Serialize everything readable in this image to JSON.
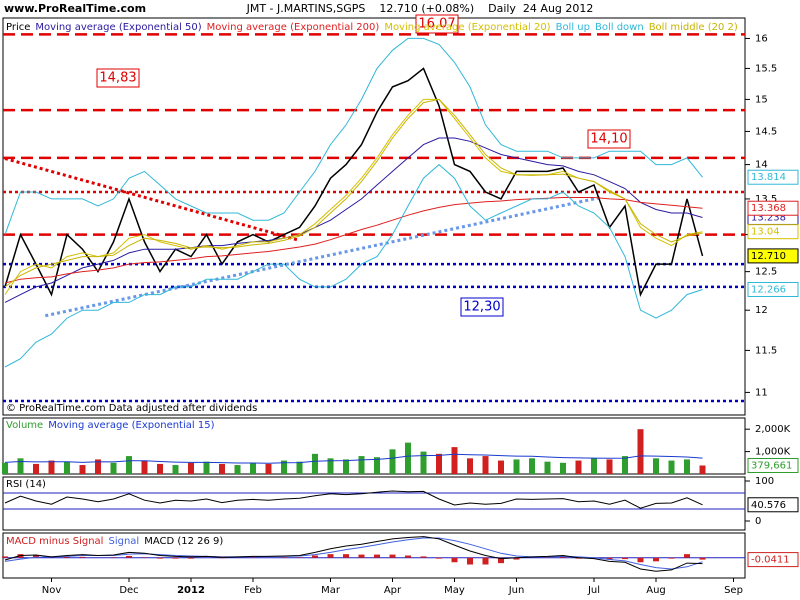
{
  "header": {
    "logo": "www.ProRealTime.com",
    "title": "JMT - J.MARTINS,SGPS    12.710 (+0.08%)    Daily  24 Aug 2012",
    "note": "© ProRealTime.com Data adjusted after dividends"
  },
  "chart_data": [
    {
      "type": "line",
      "log_scale": true,
      "ylim": [
        10.74,
        16.35
      ],
      "yticks": [
        11,
        11.5,
        12,
        12.5,
        13,
        13.5,
        14,
        14.5,
        15,
        15.5,
        16
      ],
      "categories": [
        null,
        null,
        null,
        "Nov",
        null,
        null,
        null,
        null,
        "Dec",
        null,
        null,
        null,
        "2012",
        null,
        null,
        null,
        "Feb",
        null,
        null,
        null,
        null,
        "Mar",
        null,
        null,
        null,
        "Apr",
        null,
        null,
        null,
        "May",
        null,
        null,
        null,
        "Jun",
        null,
        null,
        null,
        null,
        "Jul",
        null,
        null,
        null,
        "Aug",
        null,
        null,
        null,
        null,
        "Sep"
      ],
      "series": [
        {
          "name": "Price",
          "color": "#000000",
          "label_fill": "#ffff00",
          "values": [
            12.3,
            13.0,
            12.6,
            12.2,
            13.0,
            12.8,
            12.5,
            12.9,
            13.5,
            12.9,
            12.5,
            12.8,
            12.7,
            13.0,
            12.6,
            12.9,
            13.0,
            12.9,
            13.0,
            13.1,
            13.4,
            13.8,
            14.0,
            14.3,
            14.8,
            15.2,
            15.3,
            15.5,
            14.9,
            14.0,
            13.9,
            13.6,
            13.5,
            13.9,
            13.9,
            13.9,
            13.95,
            13.6,
            13.7,
            13.1,
            13.4,
            12.2,
            12.6,
            12.6,
            13.5,
            12.71,
            null,
            null
          ],
          "value_labels": [
            null,
            null,
            null,
            null,
            null,
            null,
            null,
            null,
            null,
            null,
            null,
            null,
            null,
            null,
            null,
            null,
            null,
            null,
            null,
            null,
            null,
            null,
            null,
            null,
            null,
            null,
            null,
            null,
            null,
            null,
            null,
            null,
            null,
            null,
            null,
            null,
            null,
            null,
            null,
            null,
            null,
            null,
            null,
            null,
            null,
            "12.710",
            null,
            null
          ]
        },
        {
          "name": "Moving average (Exponential 50)",
          "color": "#2a1aa0",
          "value_box": true,
          "values": [
            12.1,
            12.2,
            12.3,
            12.35,
            12.45,
            12.55,
            12.6,
            12.65,
            12.75,
            12.8,
            12.8,
            12.8,
            12.82,
            12.85,
            12.85,
            12.88,
            12.9,
            12.92,
            12.95,
            13.0,
            13.1,
            13.2,
            13.35,
            13.5,
            13.7,
            13.9,
            14.1,
            14.3,
            14.4,
            14.4,
            14.35,
            14.25,
            14.15,
            14.1,
            14.05,
            14.0,
            13.98,
            13.9,
            13.85,
            13.75,
            13.65,
            13.45,
            13.35,
            13.3,
            13.3,
            13.238,
            null,
            null
          ]
        },
        {
          "name": "Moving average (Exponential 200)",
          "color": "#e02020",
          "value_box": true,
          "values": [
            12.35,
            12.4,
            12.42,
            12.43,
            12.47,
            12.5,
            12.52,
            12.55,
            12.6,
            12.62,
            12.63,
            12.65,
            12.67,
            12.7,
            12.71,
            12.73,
            12.75,
            12.77,
            12.8,
            12.83,
            12.87,
            12.93,
            13.0,
            13.07,
            13.13,
            13.2,
            13.27,
            13.33,
            13.38,
            13.42,
            13.44,
            13.46,
            13.47,
            13.49,
            13.5,
            13.51,
            13.52,
            13.52,
            13.52,
            13.5,
            13.49,
            13.45,
            13.43,
            13.41,
            13.39,
            13.368,
            null,
            null
          ]
        },
        {
          "name": "Moving average (Exponential 20)",
          "color": "#d4c000",
          "value_box": true,
          "values": [
            12.2,
            12.5,
            12.6,
            12.55,
            12.7,
            12.75,
            12.7,
            12.75,
            12.95,
            13.0,
            12.9,
            12.85,
            12.8,
            12.85,
            12.8,
            12.85,
            12.9,
            12.9,
            12.95,
            13.0,
            13.15,
            13.35,
            13.55,
            13.8,
            14.1,
            14.45,
            14.75,
            15.0,
            15.0,
            14.7,
            14.4,
            14.1,
            13.9,
            13.85,
            13.85,
            13.85,
            13.9,
            13.8,
            13.75,
            13.6,
            13.5,
            13.1,
            12.95,
            12.85,
            13.0,
            13.04,
            null,
            null
          ]
        },
        {
          "name": "Boll up",
          "color": "#30b8d8",
          "value_box": true,
          "values": [
            13.0,
            13.6,
            13.6,
            13.5,
            13.5,
            13.5,
            13.4,
            13.5,
            13.8,
            13.9,
            13.7,
            13.5,
            13.4,
            13.3,
            13.3,
            13.3,
            13.2,
            13.2,
            13.3,
            13.6,
            13.9,
            14.3,
            14.6,
            15.0,
            15.5,
            15.8,
            16.0,
            16.0,
            15.9,
            15.6,
            15.2,
            14.6,
            14.3,
            14.2,
            14.2,
            14.2,
            14.1,
            14.1,
            14.1,
            14.2,
            14.2,
            14.2,
            14.0,
            14.0,
            14.1,
            13.814,
            null,
            null
          ]
        },
        {
          "name": "Boll down",
          "color": "#30b8d8",
          "value_box": true,
          "values": [
            11.3,
            11.4,
            11.6,
            11.7,
            11.9,
            12.0,
            12.0,
            12.1,
            12.1,
            12.2,
            12.2,
            12.3,
            12.3,
            12.4,
            12.4,
            12.4,
            12.5,
            12.6,
            12.6,
            12.4,
            12.3,
            12.3,
            12.4,
            12.6,
            12.7,
            13.0,
            13.4,
            13.8,
            14.0,
            13.8,
            13.4,
            13.2,
            13.3,
            13.4,
            13.5,
            13.5,
            13.6,
            13.4,
            13.3,
            13.1,
            12.7,
            12.0,
            11.9,
            12.0,
            12.2,
            12.266,
            null,
            null
          ]
        },
        {
          "name": "Boll middle (20 2)",
          "color": "#c8b400",
          "values": [
            12.3,
            12.45,
            12.55,
            12.6,
            12.65,
            12.7,
            12.7,
            12.72,
            12.85,
            12.95,
            12.92,
            12.88,
            12.82,
            12.83,
            12.82,
            12.83,
            12.86,
            12.88,
            12.92,
            12.98,
            13.1,
            13.3,
            13.5,
            13.75,
            14.05,
            14.4,
            14.7,
            14.95,
            15.0,
            14.75,
            14.45,
            14.15,
            13.95,
            13.85,
            13.84,
            13.85,
            13.86,
            13.8,
            13.75,
            13.62,
            13.5,
            13.15,
            13.0,
            12.9,
            12.98,
            13.02,
            null,
            null
          ]
        }
      ],
      "levels": [
        {
          "value": 16.07,
          "label": "16,07",
          "style": "dashed",
          "color": "#e00000"
        },
        {
          "value": 14.83,
          "label": "14,83",
          "style": "dashed",
          "color": "#e00000"
        },
        {
          "value": 14.1,
          "label": "14,10",
          "style": "dashed",
          "color": "#e00000"
        },
        {
          "value": 13.6,
          "style": "dotted",
          "color": "#e00000"
        },
        {
          "value": 13.0,
          "style": "dashed",
          "color": "#e00000"
        },
        {
          "value": 12.6,
          "style": "dotted",
          "color": "#0000cc"
        },
        {
          "value": 12.3,
          "label": "12,30",
          "style": "dotted",
          "color": "#0000cc"
        },
        {
          "value": 10.9,
          "style": "dotted",
          "color": "#0000cc"
        }
      ],
      "trendlines": [
        {
          "color": "#e00000",
          "x": [
            0,
            19
          ],
          "y": [
            14.09,
            12.92
          ]
        },
        {
          "color": "#6a98e8",
          "x": [
            2.6,
            38.4
          ],
          "y": [
            11.93,
            13.52
          ]
        }
      ]
    },
    {
      "type": "bar",
      "ylim": [
        0,
        2500000
      ],
      "yticks": [
        {
          "value": 2000000,
          "label": "2,000K"
        },
        {
          "value": 1000000,
          "label": "1,000K"
        }
      ],
      "series": [
        {
          "name": "Volume",
          "color": "#2e9e2e",
          "down_color": "#d02020",
          "type": "bar",
          "value_box": true,
          "values": [
            500000,
            700000,
            450000,
            600000,
            550000,
            400000,
            650000,
            500000,
            800000,
            600000,
            450000,
            400000,
            500000,
            550000,
            450000,
            400000,
            500000,
            450000,
            600000,
            550000,
            900000,
            700000,
            650000,
            800000,
            750000,
            1100000,
            1400000,
            1000000,
            900000,
            1200000,
            700000,
            800000,
            600000,
            650000,
            700000,
            550000,
            500000,
            600000,
            700000,
            650000,
            800000,
            2000000,
            700000,
            600000,
            650000,
            379661,
            null,
            null
          ],
          "value_labels": [
            null,
            null,
            null,
            null,
            null,
            null,
            null,
            null,
            null,
            null,
            null,
            null,
            null,
            null,
            null,
            null,
            null,
            null,
            null,
            null,
            null,
            null,
            null,
            null,
            null,
            null,
            null,
            null,
            null,
            null,
            null,
            null,
            null,
            null,
            null,
            null,
            null,
            null,
            null,
            null,
            null,
            null,
            null,
            null,
            null,
            "379,661",
            null,
            null
          ]
        },
        {
          "name": "Moving average (Exponential 15)",
          "color": "#1a3ad0",
          "type": "line",
          "values": [
            520000,
            560000,
            540000,
            550000,
            550000,
            520000,
            550000,
            540000,
            590000,
            590000,
            560000,
            530000,
            520000,
            520000,
            510000,
            490000,
            490000,
            480000,
            500000,
            510000,
            570000,
            590000,
            600000,
            630000,
            650000,
            710000,
            800000,
            820000,
            830000,
            880000,
            860000,
            850000,
            820000,
            800000,
            790000,
            760000,
            730000,
            720000,
            710000,
            700000,
            710000,
            810000,
            800000,
            780000,
            760000,
            710000,
            null,
            null
          ]
        }
      ]
    },
    {
      "type": "line",
      "ylim": [
        -22.5,
        110
      ],
      "yticks": [
        0,
        100
      ],
      "levels": [
        {
          "value": 70,
          "style": "solid",
          "color": "#2020c0"
        },
        {
          "value": 30,
          "style": "solid",
          "color": "#2020c0"
        }
      ],
      "series": [
        {
          "name": "RSI (14)",
          "color": "#000000",
          "value_box": true,
          "values": [
            45,
            62,
            50,
            42,
            60,
            55,
            48,
            55,
            68,
            52,
            45,
            52,
            50,
            55,
            46,
            52,
            54,
            52,
            55,
            57,
            63,
            68,
            66,
            68,
            72,
            75,
            73,
            74,
            55,
            40,
            45,
            42,
            44,
            55,
            54,
            55,
            56,
            48,
            50,
            42,
            52,
            32,
            44,
            45,
            58,
            40.576,
            null,
            null
          ]
        }
      ]
    },
    {
      "type": "line",
      "ylim": [
        -0.45,
        0.55
      ],
      "levels": [
        {
          "value": 0,
          "style": "solid",
          "color": "#2020c0"
        }
      ],
      "series": [
        {
          "name": "MACD minus Signal",
          "color": "#d02020",
          "type": "bar",
          "value_box": true,
          "values": [
            0.03,
            0.08,
            0.05,
            0,
            0.02,
            0.02,
            0,
            0.01,
            0.04,
            0.01,
            -0.02,
            -0.02,
            -0.02,
            0,
            -0.01,
            0,
            0.01,
            0,
            0.01,
            0.01,
            0.05,
            0.08,
            0.08,
            0.07,
            0.07,
            0.07,
            0.05,
            0.03,
            -0.02,
            -0.1,
            -0.15,
            -0.15,
            -0.12,
            -0.04,
            0,
            0.01,
            0.02,
            -0.02,
            -0.02,
            -0.04,
            -0.03,
            -0.1,
            -0.08,
            -0.02,
            0.08,
            -0.0411,
            null,
            null
          ]
        },
        {
          "name": "Signal",
          "color": "#4060e0",
          "type": "line",
          "values": [
            -0.08,
            -0.03,
            0.01,
            0.02,
            0.03,
            0.05,
            0.05,
            0.05,
            0.08,
            0.09,
            0.07,
            0.05,
            0.04,
            0.03,
            0.02,
            0.02,
            0.02,
            0.03,
            0.03,
            0.04,
            0.07,
            0.12,
            0.18,
            0.23,
            0.29,
            0.35,
            0.4,
            0.44,
            0.44,
            0.38,
            0.3,
            0.2,
            0.1,
            0.04,
            0.02,
            0.02,
            0.03,
            0.02,
            0.0,
            -0.04,
            -0.07,
            -0.15,
            -0.22,
            -0.25,
            -0.2,
            -0.0889,
            null,
            null
          ]
        },
        {
          "name": "MACD (12 26 9)",
          "color": "#000000",
          "type": "line",
          "values": [
            -0.05,
            0.05,
            0.06,
            0.02,
            0.05,
            0.07,
            0.05,
            0.06,
            0.12,
            0.1,
            0.05,
            0.03,
            0.02,
            0.03,
            0.01,
            0.02,
            0.03,
            0.03,
            0.04,
            0.05,
            0.12,
            0.2,
            0.26,
            0.3,
            0.36,
            0.42,
            0.45,
            0.47,
            0.42,
            0.28,
            0.15,
            0.05,
            -0.02,
            0.0,
            0.02,
            0.03,
            0.05,
            0.0,
            -0.02,
            -0.08,
            -0.1,
            -0.25,
            -0.3,
            -0.27,
            -0.12,
            -0.13,
            null,
            null
          ]
        }
      ]
    }
  ]
}
